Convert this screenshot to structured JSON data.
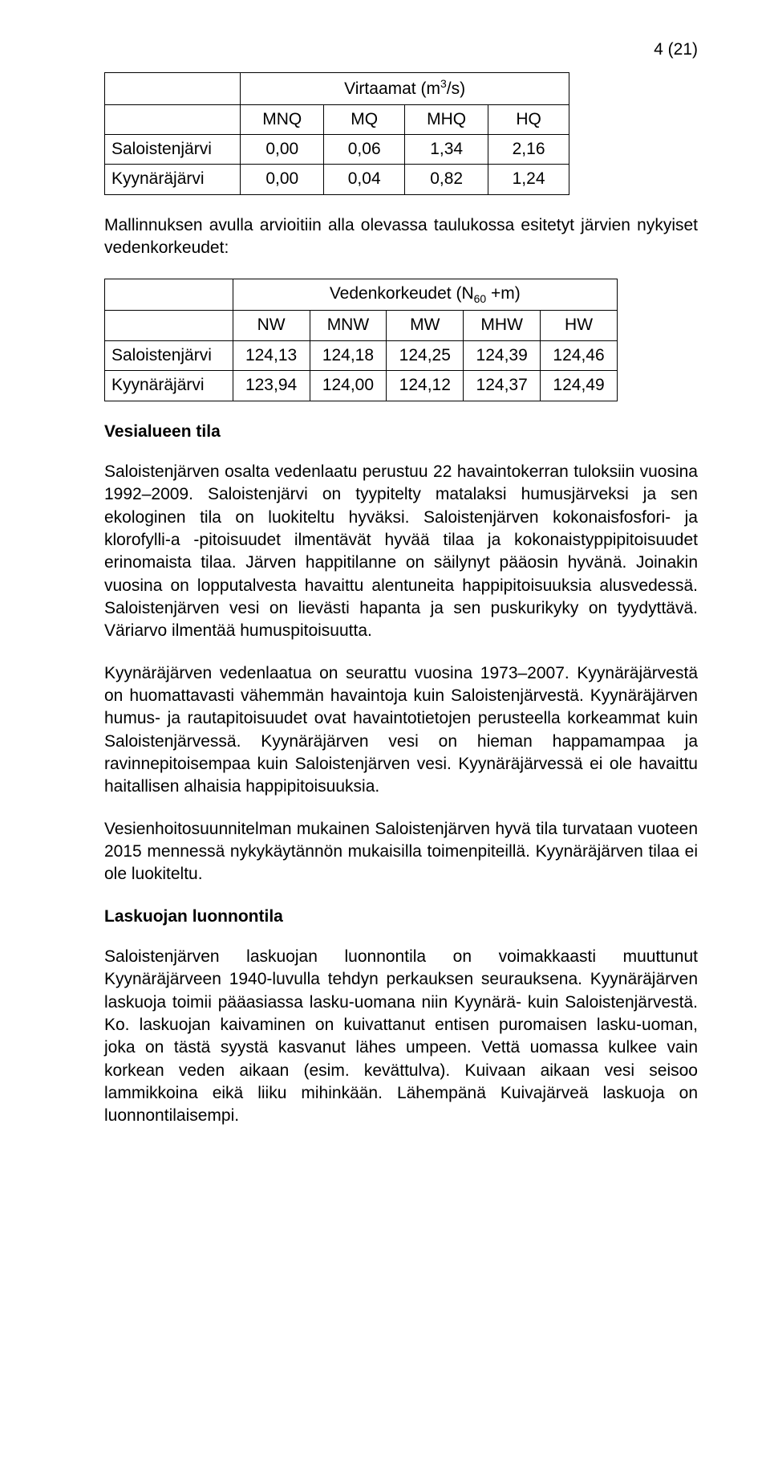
{
  "page_number": "4 (21)",
  "table1": {
    "title_prefix": "Virtaamat (m",
    "title_sup": "3",
    "title_suffix": "/s)",
    "headers": [
      "MNQ",
      "MQ",
      "MHQ",
      "HQ"
    ],
    "rows": [
      {
        "label": "Saloistenjärvi",
        "vals": [
          "0,00",
          "0,06",
          "1,34",
          "2,16"
        ]
      },
      {
        "label": "Kyynäräjärvi",
        "vals": [
          "0,00",
          "0,04",
          "0,82",
          "1,24"
        ]
      }
    ]
  },
  "intro_para": "Mallinnuksen avulla arvioitiin alla olevassa taulukossa esitetyt järvien nykyiset vedenkorkeudet:",
  "table2": {
    "title_prefix": "Vedenkorkeudet (N",
    "title_sub": "60",
    "title_suffix": " +m)",
    "headers": [
      "NW",
      "MNW",
      "MW",
      "MHW",
      "HW"
    ],
    "rows": [
      {
        "label": "Saloistenjärvi",
        "vals": [
          "124,13",
          "124,18",
          "124,25",
          "124,39",
          "124,46"
        ]
      },
      {
        "label": "Kyynäräjärvi",
        "vals": [
          "123,94",
          "124,00",
          "124,12",
          "124,37",
          "124,49"
        ]
      }
    ]
  },
  "section1_heading": "Vesialueen tila",
  "para1": "Saloistenjärven osalta vedenlaatu perustuu 22 havaintokerran tuloksiin vuosina 1992–2009. Saloistenjärvi on tyypitelty matalaksi humusjärveksi ja sen ekologinen tila on luokiteltu hyväksi. Saloistenjärven kokonaisfosfori- ja klorofylli-a -pitoisuudet ilmentävät hyvää tilaa ja kokonaistyppipitoisuudet erinomaista tilaa. Järven happitilanne on säilynyt pääosin hyvänä. Joinakin vuosina on lopputalvesta havaittu alentuneita happipitoisuuksia alusvedessä. Saloistenjärven vesi on lievästi hapanta ja sen puskurikyky on tyydyttävä. Väriarvo ilmentää humuspitoisuutta.",
  "para2": "Kyynäräjärven vedenlaatua on seurattu vuosina 1973–2007. Kyynäräjärvestä on huomattavasti vähemmän havaintoja kuin Saloistenjärvestä. Kyynäräjärven humus- ja rautapitoisuudet ovat havaintotietojen perusteella korkeammat kuin Saloistenjärvessä. Kyynäräjärven vesi on hieman happamampaa ja ravinnepitoisempaa kuin Saloistenjärven vesi. Kyynäräjärvessä ei ole havaittu haitallisen alhaisia happipitoisuuksia.",
  "para3": "Vesienhoitosuunnitelman mukainen Saloistenjärven hyvä tila turvataan vuoteen 2015 mennessä nykykäytännön mukaisilla toimenpiteillä. Kyynäräjärven tilaa ei ole luokiteltu.",
  "section2_heading": "Laskuojan luonnontila",
  "para4": "Saloistenjärven laskuojan luonnontila on voimakkaasti muuttunut Kyynäräjärveen 1940-luvulla tehdyn perkauksen seurauksena. Kyynäräjärven laskuoja toimii pääasiassa lasku-uomana niin Kyynärä- kuin Saloistenjärvestä. Ko. laskuojan kaivaminen on kuivattanut entisen puromaisen lasku-uoman, joka on tästä syystä kasvanut lähes umpeen. Vettä uomassa kulkee vain korkean veden aikaan (esim. kevättulva). Kuivaan aikaan vesi seisoo lammikkoina eikä liiku mihinkään. Lähempänä Kuivajärveä laskuoja on luonnontilaisempi."
}
